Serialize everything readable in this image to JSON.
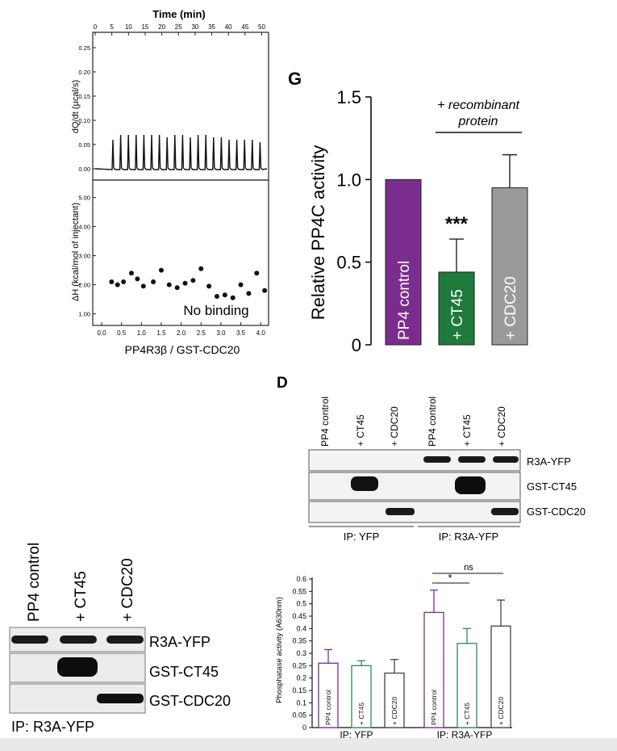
{
  "itc": {
    "top_axis_label": "Time (min)",
    "top_ticks": [
      "0",
      "5",
      "10",
      "15",
      "20",
      "25",
      "30",
      "35",
      "40",
      "45",
      "50"
    ],
    "upper_ylabel": "dQ/dt (µcal/s)",
    "upper_yticks": [
      "0.25",
      "0.20",
      "0.15",
      "0.10",
      "0.05",
      "0.00"
    ],
    "lower_ylabel": "ΔH (kcal/mol of injectant)",
    "lower_yticks": [
      "5.00",
      "4.00",
      "3.00",
      "2.00",
      "1.00"
    ],
    "bottom_ticks": [
      "0.0",
      "0.5",
      "1.0",
      "1.5",
      "2.0",
      "2.5",
      "3.0",
      "3.5",
      "4.0"
    ],
    "xlabel": "PP4R3β / GST-CDC20",
    "annotation": "No binding"
  },
  "panel_g": {
    "letter": "G",
    "ylabel": "Relative PP4C activity",
    "yticks": [
      "1.5",
      "1.0",
      "0.5",
      "0"
    ],
    "group_label_line1": "+ recombinant",
    "group_label_line2": "protein",
    "significance": "***",
    "bar_labels": [
      "PP4 control",
      "+ CT45",
      "+ CDC20"
    ]
  },
  "panel_d": {
    "letter": "D",
    "lane_labels": [
      "PP4 control",
      "+ CT45",
      "+ CDC20",
      "PP4 control",
      "+ CT45",
      "+ CDC20"
    ],
    "row_labels": [
      "R3A-YFP",
      "GST-CT45",
      "GST-CDC20"
    ],
    "ip_labels": [
      "IP: YFP",
      "IP: R3A-YFP"
    ]
  },
  "blot_left": {
    "lane_labels": [
      "PP4 control",
      "+ CT45",
      "+ CDC20"
    ],
    "row_labels": [
      "R3A-YFP",
      "GST-CT45",
      "GST-CDC20"
    ],
    "ip_label": "IP: R3A-YFP"
  },
  "phos": {
    "ylabel": "Phosphatase activity (A630nm)",
    "yticks": [
      "0.6",
      "0.55",
      "0.5",
      "0.45",
      "0.4",
      "0.35",
      "0.3",
      "0.25",
      "0.2",
      "0.15",
      "0.1",
      "0.05",
      "0"
    ],
    "ns_label": "ns",
    "star_label": "*",
    "bar_labels": [
      "PP4 control",
      "+ CT45",
      "+ CDC20",
      "PP4 control",
      "+ CT45",
      "+ CDC20"
    ],
    "ip_labels": [
      "IP: YFP",
      "IP: R3A-YFP"
    ],
    "colors": [
      "#7b2d8e",
      "#2e8b57",
      "#444444",
      "#7b2d8e",
      "#2e8b57",
      "#444444"
    ]
  },
  "chart_data": [
    {
      "type": "scatter",
      "panel": "itc",
      "xlim": [
        0,
        4.3
      ],
      "ylim": [
        0.6,
        5.6
      ],
      "x": [
        0.25,
        0.4,
        0.55,
        0.75,
        0.9,
        1.05,
        1.3,
        1.5,
        1.7,
        1.9,
        2.1,
        2.3,
        2.5,
        2.7,
        2.9,
        3.1,
        3.3,
        3.5,
        3.7,
        3.9,
        4.1
      ],
      "y": [
        2.1,
        2.0,
        2.1,
        2.4,
        2.2,
        1.95,
        2.1,
        2.5,
        2.0,
        1.9,
        2.05,
        2.15,
        2.55,
        1.95,
        1.6,
        1.65,
        1.55,
        2.0,
        1.7,
        2.4,
        1.8
      ]
    },
    {
      "type": "bar",
      "panel": "G",
      "categories": [
        "PP4 control",
        "+ CT45",
        "+ CDC20"
      ],
      "values": [
        1.0,
        0.44,
        0.95
      ],
      "errors": [
        0.0,
        0.2,
        0.2
      ],
      "colors": [
        "#7b2d8e",
        "#1e7a3c",
        "#9a9a9a"
      ],
      "ylim": [
        0,
        1.5
      ]
    },
    {
      "type": "bar",
      "panel": "phosphatase",
      "categories": [
        "PP4 control",
        "+ CT45",
        "+ CDC20",
        "PP4 control",
        "+ CT45",
        "+ CDC20"
      ],
      "values": [
        0.26,
        0.25,
        0.22,
        0.465,
        0.34,
        0.41
      ],
      "errors": [
        0.055,
        0.02,
        0.055,
        0.09,
        0.06,
        0.105
      ],
      "ylim": [
        0,
        0.6
      ]
    }
  ]
}
